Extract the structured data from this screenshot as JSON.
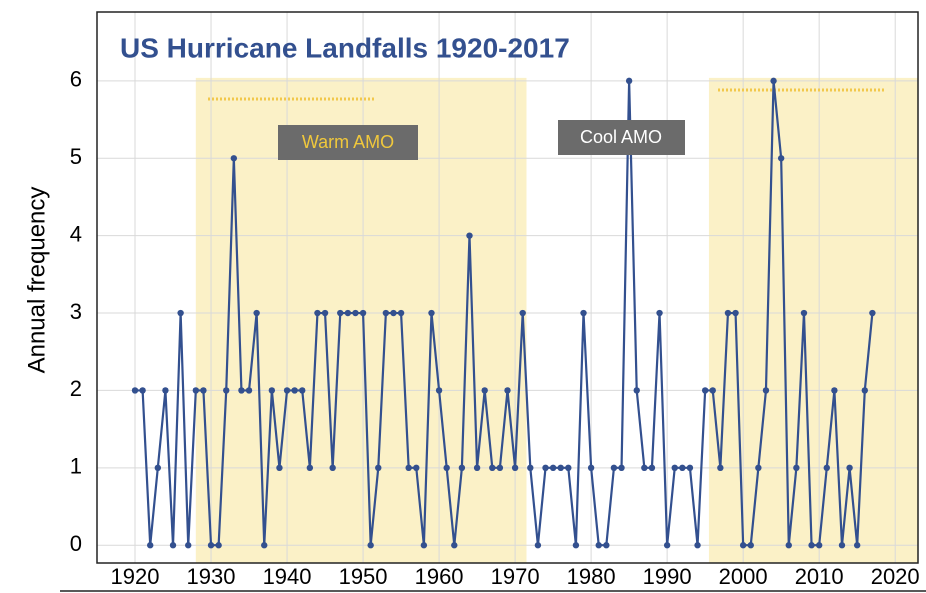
{
  "chart_data": {
    "type": "line",
    "title": "US Hurricane Landfalls 1920-2017",
    "y_label": "Annual frequency",
    "annotations": [
      "Warm AMO",
      "Cool AMO"
    ],
    "shaded_regions": [
      [
        1928,
        1971.5
      ],
      [
        1995.5,
        2023
      ]
    ],
    "x": [
      1920,
      1921,
      1922,
      1923,
      1924,
      1925,
      1926,
      1927,
      1928,
      1929,
      1930,
      1931,
      1932,
      1933,
      1934,
      1935,
      1936,
      1937,
      1938,
      1939,
      1940,
      1941,
      1942,
      1943,
      1944,
      1945,
      1946,
      1947,
      1948,
      1949,
      1950,
      1951,
      1952,
      1953,
      1954,
      1955,
      1956,
      1957,
      1958,
      1959,
      1960,
      1961,
      1962,
      1963,
      1964,
      1965,
      1966,
      1967,
      1968,
      1969,
      1970,
      1971,
      1972,
      1973,
      1974,
      1975,
      1976,
      1977,
      1978,
      1979,
      1980,
      1981,
      1982,
      1983,
      1984,
      1985,
      1986,
      1987,
      1988,
      1989,
      1990,
      1991,
      1992,
      1993,
      1994,
      1995,
      1996,
      1997,
      1998,
      1999,
      2000,
      2001,
      2002,
      2003,
      2004,
      2005,
      2006,
      2007,
      2008,
      2009,
      2010,
      2011,
      2012,
      2013,
      2014,
      2015,
      2016,
      2017
    ],
    "series": [
      {
        "name": "US hurricane landfalls",
        "color": "#33508f",
        "values": [
          2,
          2,
          0,
          1,
          2,
          0,
          3,
          0,
          2,
          2,
          0,
          0,
          2,
          5,
          2,
          2,
          3,
          0,
          2,
          1,
          2,
          2,
          2,
          1,
          3,
          3,
          1,
          3,
          3,
          3,
          3,
          0,
          1,
          3,
          3,
          3,
          1,
          1,
          0,
          3,
          2,
          1,
          0,
          1,
          4,
          1,
          2,
          1,
          1,
          2,
          1,
          3,
          1,
          0,
          1,
          1,
          1,
          1,
          0,
          3,
          1,
          0,
          0,
          1,
          1,
          6,
          2,
          1,
          1,
          3,
          0,
          1,
          1,
          1,
          0,
          2,
          2,
          1,
          3,
          3,
          0,
          0,
          1,
          2,
          6,
          5,
          0,
          1,
          3,
          0,
          0,
          1,
          2,
          0,
          1,
          0,
          2,
          3
        ]
      }
    ],
    "xlim": [
      1915,
      2023
    ],
    "ylim": [
      -0.23,
      6.89
    ],
    "xticks": [
      1920,
      1930,
      1940,
      1950,
      1960,
      1970,
      1980,
      1990,
      2000,
      2010,
      2020
    ],
    "yticks": [
      0,
      1,
      2,
      3,
      4,
      5,
      6
    ],
    "grid": true
  }
}
